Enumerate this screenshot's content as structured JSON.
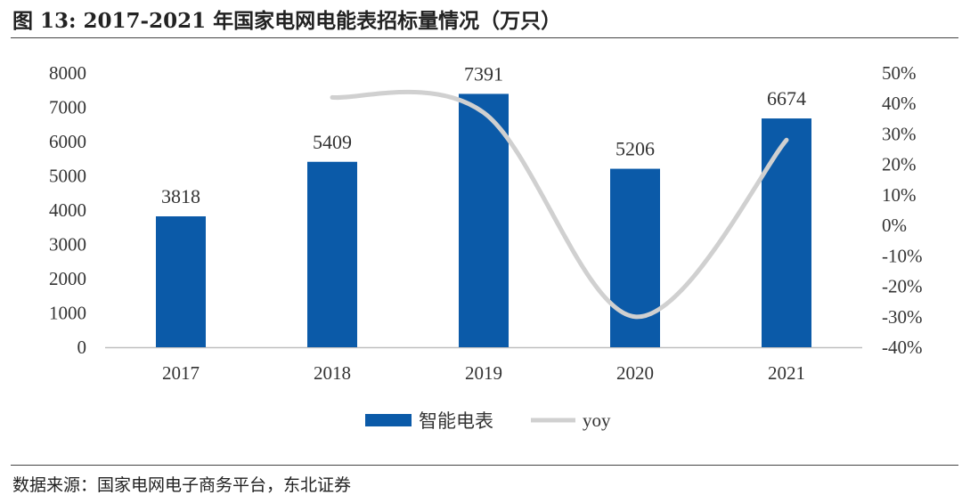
{
  "figure": {
    "title": "图 13: 2017-2021 年国家电网电能表招标量情况（万只）",
    "source": "数据来源：国家电网电子商务平台，东北证券"
  },
  "colors": {
    "bar": "#0b5aa8",
    "line": "#d0d0d0",
    "axis": "#bfbfbf"
  },
  "chart_data": {
    "type": "bar",
    "categories": [
      "2017",
      "2018",
      "2019",
      "2020",
      "2021"
    ],
    "series": [
      {
        "name": "智能电表",
        "type": "bar",
        "axis": "left",
        "values": [
          3818,
          5409,
          7391,
          5206,
          6674
        ]
      },
      {
        "name": "yoy",
        "type": "line",
        "axis": "right",
        "smooth": true,
        "values": [
          null,
          0.42,
          0.37,
          -0.3,
          0.28
        ]
      }
    ],
    "y_left": {
      "min": 0,
      "max": 8000,
      "step": 1000,
      "ticks": [
        "0",
        "1000",
        "2000",
        "3000",
        "4000",
        "5000",
        "6000",
        "7000",
        "8000"
      ]
    },
    "y_right": {
      "min": -0.4,
      "max": 0.5,
      "step": 0.1,
      "ticks": [
        "-40%",
        "-30%",
        "-20%",
        "-10%",
        "0%",
        "10%",
        "20%",
        "30%",
        "40%",
        "50%"
      ]
    },
    "data_labels": [
      "3818",
      "5409",
      "7391",
      "5206",
      "6674"
    ],
    "legend": {
      "position": "bottom",
      "entries": [
        "智能电表",
        "yoy"
      ]
    },
    "grid": false
  }
}
